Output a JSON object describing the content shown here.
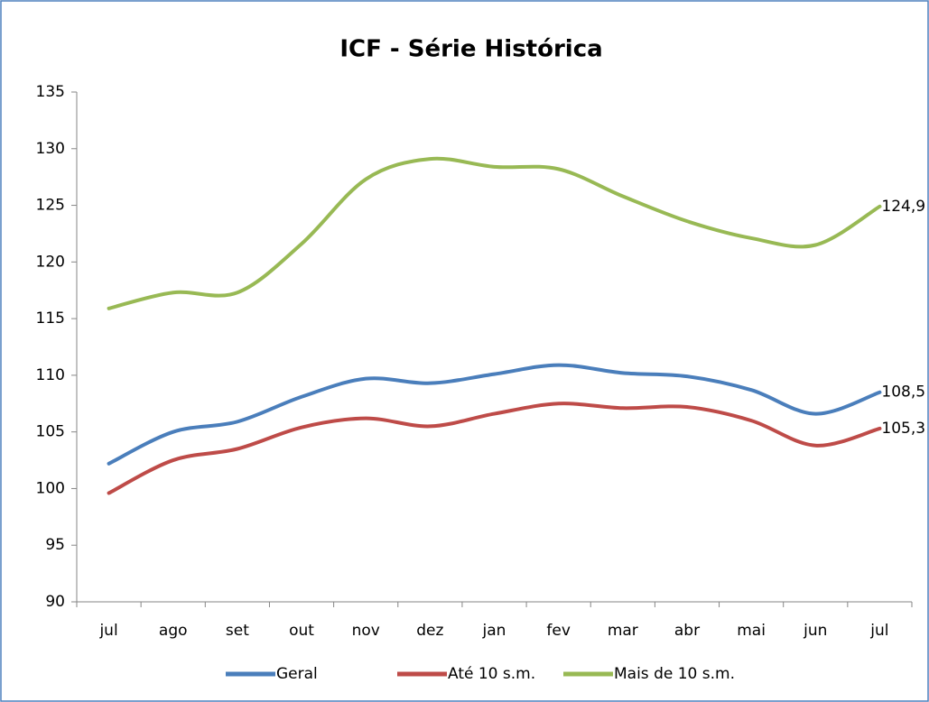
{
  "chart_data": {
    "type": "line",
    "title": "ICF - Série Histórica",
    "categories": [
      "jul",
      "ago",
      "set",
      "out",
      "nov",
      "dez",
      "jan",
      "fev",
      "mar",
      "abr",
      "mai",
      "jun",
      "jul"
    ],
    "series": [
      {
        "name": "Geral",
        "color": "#4a7ebb",
        "values": [
          102.2,
          105.0,
          105.9,
          108.1,
          109.7,
          109.3,
          110.1,
          110.9,
          110.2,
          109.9,
          108.7,
          106.6,
          108.5
        ],
        "value_labels": [
          null,
          null,
          null,
          null,
          null,
          null,
          null,
          null,
          null,
          null,
          null,
          null,
          "108,5"
        ]
      },
      {
        "name": "Até 10 s.m.",
        "color": "#be4b48",
        "values": [
          99.6,
          102.5,
          103.5,
          105.4,
          106.2,
          105.5,
          106.6,
          107.5,
          107.1,
          107.2,
          106.0,
          103.8,
          105.3
        ],
        "value_labels": [
          null,
          null,
          null,
          null,
          null,
          null,
          null,
          null,
          null,
          null,
          null,
          null,
          "105,3"
        ]
      },
      {
        "name": "Mais de 10 s.m.",
        "color": "#98b954",
        "values": [
          115.9,
          117.3,
          117.3,
          121.6,
          127.3,
          129.1,
          128.4,
          128.2,
          125.8,
          123.6,
          122.1,
          121.5,
          124.9
        ],
        "value_labels": [
          null,
          null,
          null,
          null,
          null,
          null,
          null,
          null,
          null,
          null,
          null,
          null,
          "124,9"
        ]
      }
    ],
    "ylim": [
      90,
      135
    ],
    "yticks": [
      90,
      95,
      100,
      105,
      110,
      115,
      120,
      125,
      130,
      135
    ],
    "grid": false,
    "legend": "bottom"
  }
}
